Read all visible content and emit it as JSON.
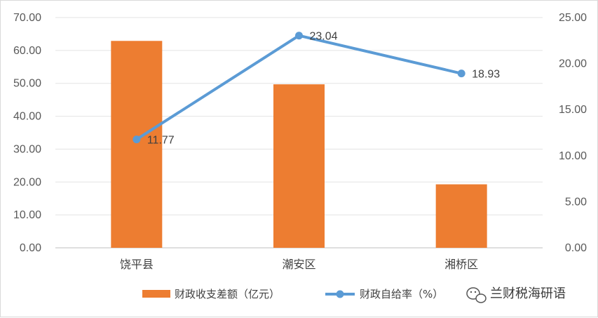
{
  "chart_data": {
    "type": "bar",
    "categories": [
      "饶平县",
      "潮安区",
      "湘桥区"
    ],
    "series": [
      {
        "name": "财政收支差额（亿元）",
        "kind": "bar",
        "axis": "left",
        "values": [
          62.9,
          49.7,
          19.3
        ],
        "color": "#ED7D31"
      },
      {
        "name": "财政自给率（%）",
        "kind": "line",
        "axis": "right",
        "values": [
          11.77,
          23.04,
          18.93
        ],
        "color": "#5B9BD5",
        "labels": [
          "11.77",
          "23.04",
          "18.93"
        ]
      }
    ],
    "y_left": {
      "ylim": [
        0,
        70
      ],
      "ticks": [
        "0.00",
        "10.00",
        "20.00",
        "30.00",
        "40.00",
        "50.00",
        "60.00",
        "70.00"
      ]
    },
    "y_right": {
      "ylim": [
        0,
        25
      ],
      "ticks": [
        "0.00",
        "5.00",
        "10.00",
        "15.00",
        "20.00",
        "25.00"
      ]
    },
    "grid": true,
    "legend_position": "bottom"
  },
  "watermark": {
    "text": "兰财税海研语",
    "icon": "wechat-icon"
  }
}
